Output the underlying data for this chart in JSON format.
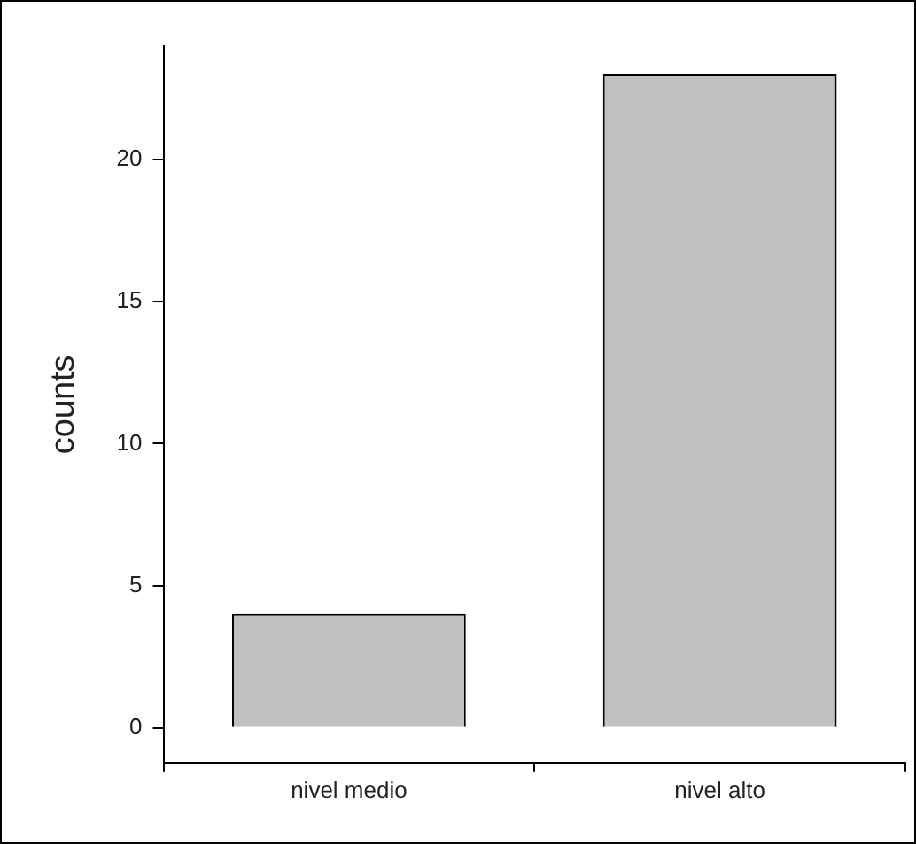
{
  "chart_data": {
    "type": "bar",
    "ylabel": "counts",
    "categories": [
      "nivel medio",
      "nivel alto"
    ],
    "values": [
      4,
      23
    ],
    "color": "#c0c0c0",
    "ylim": [
      -1.25,
      24
    ],
    "yticks": [
      0,
      5,
      10,
      15,
      20
    ],
    "grid": false,
    "legend": false
  }
}
